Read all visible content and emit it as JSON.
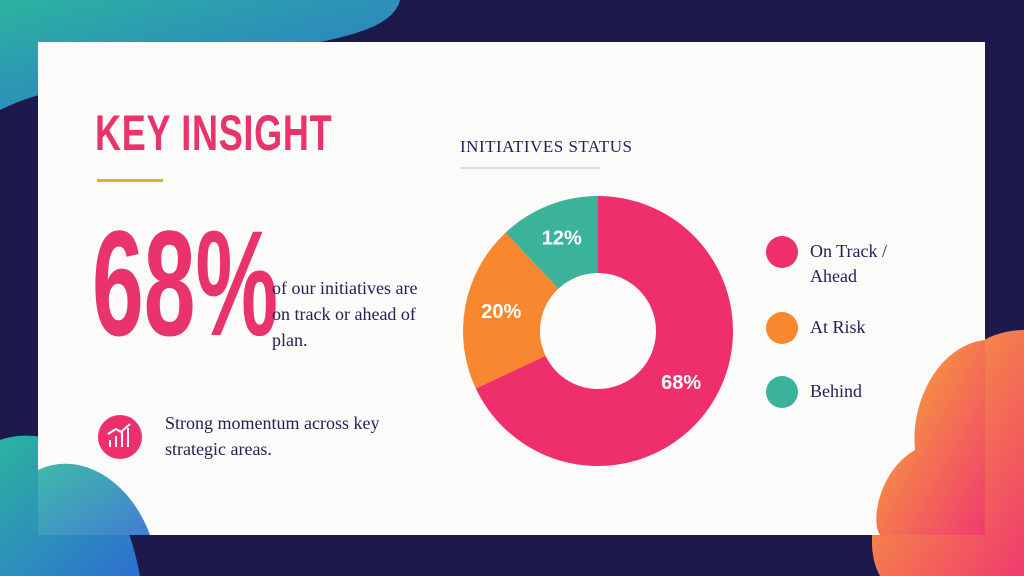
{
  "slide": {
    "title": "KEY INSIGHT",
    "stat": "68%",
    "stat_text": "of our initiatives are on track or ahead of plan.",
    "note": "Strong momentum across key strategic areas."
  },
  "chart_data": {
    "type": "pie",
    "title": "INITIATIVES STATUS",
    "donut": true,
    "categories": [
      "On Track / Ahead",
      "At Risk",
      "Behind"
    ],
    "values": [
      68,
      20,
      12
    ],
    "value_labels": [
      "68%",
      "20%",
      "12%"
    ],
    "colors": [
      "#ee2f6b",
      "#f7882f",
      "#3ab39a"
    ]
  }
}
